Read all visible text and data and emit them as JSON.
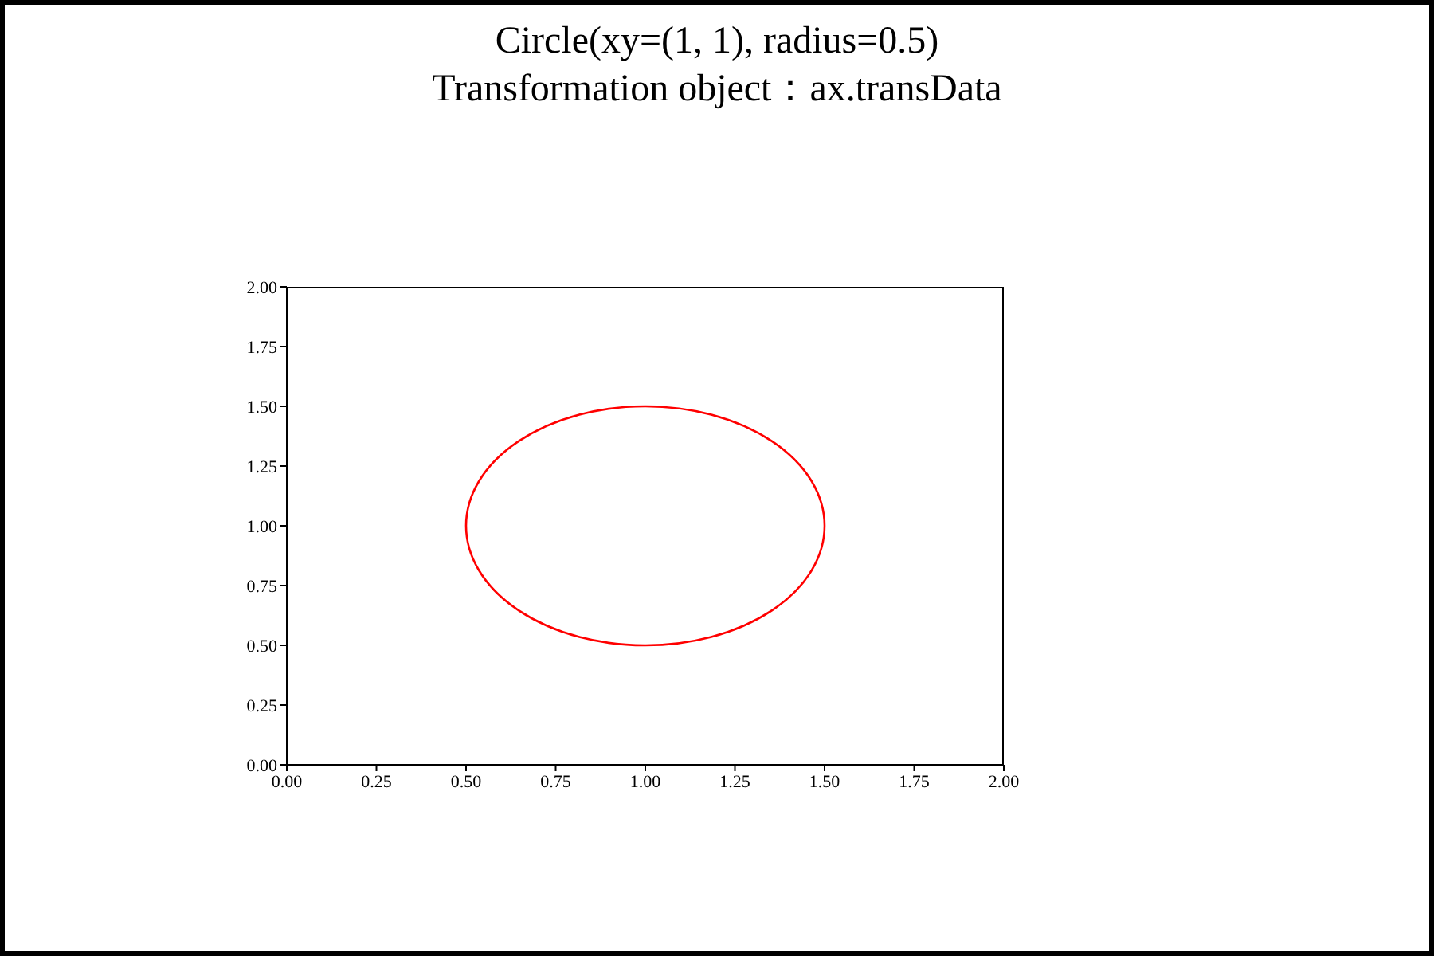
{
  "chart_data": {
    "type": "line",
    "title": "Circle(xy=(1, 1), radius=0.5)\nTransformation object：ax.transData",
    "xlim": [
      0,
      2
    ],
    "ylim": [
      0,
      2
    ],
    "xticks": [
      {
        "value": 0,
        "label": "0.00"
      },
      {
        "value": 0.25,
        "label": "0.25"
      },
      {
        "value": 0.5,
        "label": "0.50"
      },
      {
        "value": 0.75,
        "label": "0.75"
      },
      {
        "value": 1,
        "label": "1.00"
      },
      {
        "value": 1.25,
        "label": "1.25"
      },
      {
        "value": 1.5,
        "label": "1.50"
      },
      {
        "value": 1.75,
        "label": "1.75"
      },
      {
        "value": 2,
        "label": "2.00"
      }
    ],
    "yticks": [
      {
        "value": 0,
        "label": "0.00"
      },
      {
        "value": 0.25,
        "label": "0.25"
      },
      {
        "value": 0.5,
        "label": "0.50"
      },
      {
        "value": 0.75,
        "label": "0.75"
      },
      {
        "value": 1,
        "label": "1.00"
      },
      {
        "value": 1.25,
        "label": "1.25"
      },
      {
        "value": 1.5,
        "label": "1.50"
      },
      {
        "value": 1.75,
        "label": "1.75"
      },
      {
        "value": 2,
        "label": "2.00"
      }
    ]
  }
}
